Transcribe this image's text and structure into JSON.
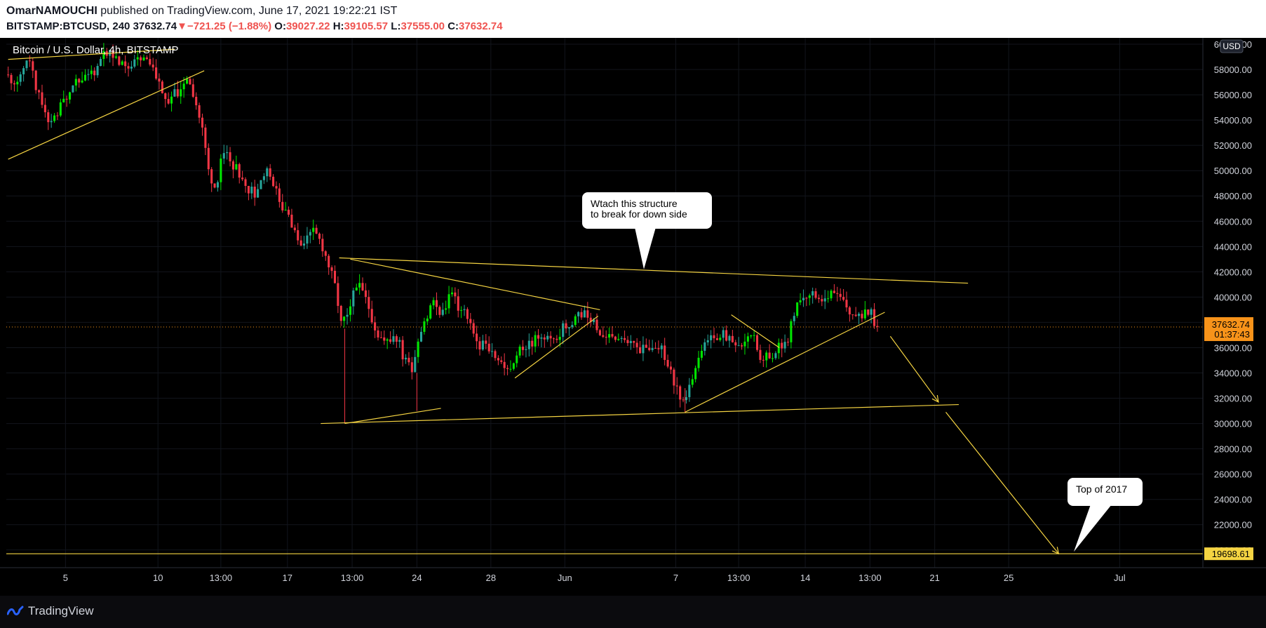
{
  "header": {
    "author": "OmarNAMOUCHI",
    "published_text": "published on TradingView.com, June 17, 2021 19:22:21 IST",
    "symbol": "BITSTAMP:BTCUSD, 240",
    "last": "37632.74",
    "change_arrow": "▼",
    "change": "−721.25 (−1.88%)",
    "o_label": "O:",
    "o_value": "39027.22",
    "h_label": "H:",
    "h_value": "39105.57",
    "l_label": "L:",
    "l_value": "37555.00",
    "c_label": "C:",
    "c_value": "37632.74"
  },
  "chart_data": {
    "type": "candlestick",
    "title": "Bitcoin / U.S. Dollar, 4h, BITSTAMP",
    "currency": "USD",
    "ylim": [
      18600,
      60500
    ],
    "y_ticks": [
      "20000.00",
      "22000.00",
      "24000.00",
      "26000.00",
      "28000.00",
      "30000.00",
      "32000.00",
      "34000.00",
      "36000.00",
      "38000.00",
      "40000.00",
      "42000.00",
      "44000.00",
      "46000.00",
      "48000.00",
      "50000.00",
      "52000.00",
      "54000.00",
      "56000.00",
      "58000.00",
      "60000.00"
    ],
    "x_ticks": [
      {
        "label": "5",
        "t": 5
      },
      {
        "label": "10",
        "t": 10
      },
      {
        "label": "13:00",
        "t": 13.4
      },
      {
        "label": "17",
        "t": 17
      },
      {
        "label": "13:00",
        "t": 20.5
      },
      {
        "label": "24",
        "t": 24
      },
      {
        "label": "28",
        "t": 28
      },
      {
        "label": "Jun",
        "t": 32
      },
      {
        "label": "7",
        "t": 38
      },
      {
        "label": "13:00",
        "t": 41.4
      },
      {
        "label": "14",
        "t": 45
      },
      {
        "label": "13:00",
        "t": 48.5
      },
      {
        "label": "21",
        "t": 52
      },
      {
        "label": "25",
        "t": 56
      },
      {
        "label": "Jul",
        "t": 62
      }
    ],
    "x_range": [
      1.8,
      66.5
    ],
    "price_path": [
      [
        1.9,
        57600
      ],
      [
        2.5,
        57000
      ],
      [
        3.2,
        58800
      ],
      [
        3.8,
        55500
      ],
      [
        4.3,
        53400
      ],
      [
        4.8,
        54800
      ],
      [
        5.5,
        56600
      ],
      [
        6.2,
        57300
      ],
      [
        6.8,
        58000
      ],
      [
        7.3,
        59200
      ],
      [
        7.8,
        59000
      ],
      [
        8.4,
        58000
      ],
      [
        9.0,
        58600
      ],
      [
        9.7,
        58900
      ],
      [
        10.2,
        57000
      ],
      [
        10.7,
        55500
      ],
      [
        11.2,
        56200
      ],
      [
        11.8,
        57600
      ],
      [
        12.2,
        55500
      ],
      [
        12.6,
        53000
      ],
      [
        12.9,
        50000
      ],
      [
        13.3,
        48500
      ],
      [
        13.6,
        51500
      ],
      [
        14.2,
        50600
      ],
      [
        14.8,
        49000
      ],
      [
        15.4,
        48200
      ],
      [
        16.0,
        50000
      ],
      [
        16.5,
        48500
      ],
      [
        17.0,
        47000
      ],
      [
        17.4,
        45500
      ],
      [
        17.8,
        44000
      ],
      [
        18.4,
        45500
      ],
      [
        19.0,
        44300
      ],
      [
        19.4,
        42500
      ],
      [
        19.8,
        40500
      ],
      [
        20.1,
        37500
      ],
      [
        20.5,
        39500
      ],
      [
        21.0,
        41000
      ],
      [
        21.5,
        39500
      ],
      [
        22.0,
        37200
      ],
      [
        22.5,
        36300
      ],
      [
        23.0,
        37200
      ],
      [
        23.5,
        35000
      ],
      [
        23.9,
        34000
      ],
      [
        24.4,
        37500
      ],
      [
        25.0,
        39600
      ],
      [
        25.5,
        38800
      ],
      [
        26.0,
        40200
      ],
      [
        26.5,
        39000
      ],
      [
        27.0,
        38500
      ],
      [
        27.5,
        36300
      ],
      [
        28.0,
        36000
      ],
      [
        28.5,
        35200
      ],
      [
        29.0,
        33800
      ],
      [
        29.6,
        35600
      ],
      [
        30.2,
        36300
      ],
      [
        30.8,
        37000
      ],
      [
        31.4,
        36600
      ],
      [
        32.0,
        37400
      ],
      [
        32.6,
        38200
      ],
      [
        33.2,
        38900
      ],
      [
        33.8,
        37800
      ],
      [
        34.3,
        36600
      ],
      [
        34.8,
        37000
      ],
      [
        35.4,
        36200
      ],
      [
        36.0,
        36000
      ],
      [
        36.6,
        35800
      ],
      [
        37.2,
        36400
      ],
      [
        37.7,
        34800
      ],
      [
        38.2,
        32800
      ],
      [
        38.6,
        31800
      ],
      [
        39.0,
        32900
      ],
      [
        39.5,
        35600
      ],
      [
        40.0,
        36700
      ],
      [
        40.6,
        37200
      ],
      [
        41.1,
        36800
      ],
      [
        41.6,
        36200
      ],
      [
        42.2,
        37300
      ],
      [
        42.7,
        35400
      ],
      [
        43.2,
        35300
      ],
      [
        43.7,
        36100
      ],
      [
        44.2,
        36500
      ],
      [
        44.6,
        38800
      ],
      [
        45.1,
        40200
      ],
      [
        45.6,
        40500
      ],
      [
        46.1,
        40000
      ],
      [
        46.6,
        40100
      ],
      [
        47.1,
        39800
      ],
      [
        47.6,
        38800
      ],
      [
        48.1,
        38200
      ],
      [
        48.6,
        39100
      ],
      [
        49.0,
        37632
      ]
    ],
    "last_price": 37632.74,
    "countdown": "01:37:43",
    "level_price": 19698.61,
    "annotations": [
      {
        "name": "structure-note",
        "line1": "Wtach this structure",
        "line2": "to break for down side"
      },
      {
        "name": "top-2017-note",
        "line1": "Top of 2017"
      }
    ],
    "trendlines": [
      {
        "t1": 1.9,
        "p1": 58800,
        "t2": 10.9,
        "p2": 59600
      },
      {
        "t1": 1.9,
        "p1": 50900,
        "t2": 12.5,
        "p2": 57900
      },
      {
        "t1": 19.8,
        "p1": 43100,
        "t2": 53.8,
        "p2": 41100
      },
      {
        "t1": 20.4,
        "p1": 43000,
        "t2": 33.9,
        "p2": 39000
      },
      {
        "t1": 18.8,
        "p1": 30000,
        "t2": 53.3,
        "p2": 31500
      },
      {
        "t1": 20.1,
        "p1": 30000,
        "t2": 25.3,
        "p2": 31200
      },
      {
        "t1": 29.3,
        "p1": 33600,
        "t2": 33.8,
        "p2": 38500
      },
      {
        "t1": 38.5,
        "p1": 30900,
        "t2": 49.3,
        "p2": 38800
      },
      {
        "t1": 41.0,
        "p1": 38600,
        "t2": 43.6,
        "p2": 36000
      }
    ],
    "arrows": [
      {
        "t1": 49.6,
        "p1": 36900,
        "t2": 52.2,
        "p2": 31700
      },
      {
        "t1": 52.6,
        "p1": 30900,
        "t2": 58.7,
        "p2": 19700
      }
    ],
    "colors": {
      "up": "#26a69a",
      "up_bright": "#00e600",
      "down": "#f23645",
      "drawing": "#f5d442",
      "level": "#f5d442",
      "last_tag": "#f7931a",
      "background": "#000000"
    }
  },
  "footer": {
    "brand": "TradingView"
  }
}
